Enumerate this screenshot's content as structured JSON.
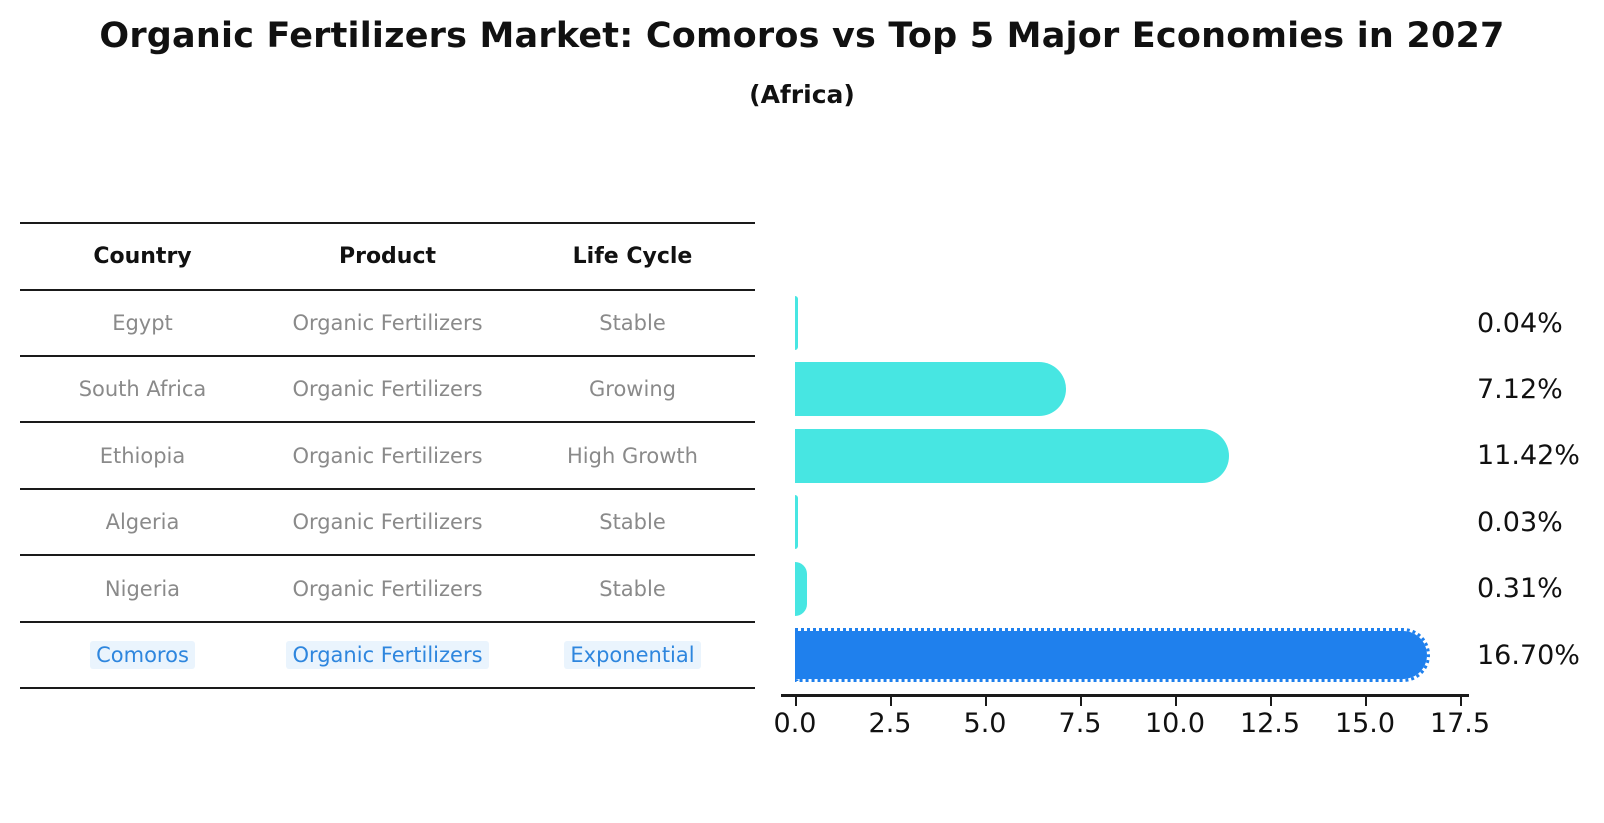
{
  "title": "Organic Fertilizers Market: Comoros vs Top 5 Major Economies in 2027",
  "subtitle": "(Africa)",
  "table": {
    "headers": [
      "Country",
      "Product",
      "Life Cycle"
    ],
    "rows": [
      {
        "country": "Egypt",
        "product": "Organic Fertilizers",
        "life_cycle": "Stable"
      },
      {
        "country": "South Africa",
        "product": "Organic Fertilizers",
        "life_cycle": "Growing"
      },
      {
        "country": "Ethiopia",
        "product": "Organic Fertilizers",
        "life_cycle": "High Growth"
      },
      {
        "country": "Algeria",
        "product": "Organic Fertilizers",
        "life_cycle": "Stable"
      },
      {
        "country": "Nigeria",
        "product": "Organic Fertilizers",
        "life_cycle": "Stable"
      },
      {
        "country": "Comoros",
        "product": "Organic Fertilizers",
        "life_cycle": "Exponential"
      }
    ],
    "highlighted_row": "Comoros"
  },
  "chart_data": {
    "type": "bar",
    "orientation": "horizontal",
    "title": "Organic Fertilizers Market: Comoros vs Top 5 Major Economies in 2027",
    "subtitle": "(Africa)",
    "categories": [
      "Egypt",
      "South Africa",
      "Ethiopia",
      "Algeria",
      "Nigeria",
      "Comoros"
    ],
    "values": [
      0.04,
      7.12,
      11.42,
      0.03,
      0.31,
      16.7
    ],
    "value_labels": [
      "0.04%",
      "7.12%",
      "11.42%",
      "0.03%",
      "0.31%",
      "16.70%"
    ],
    "xlabel": "",
    "ylabel": "",
    "xlim": [
      0,
      17.5
    ],
    "x_tick_labels": [
      "0.0",
      "2.5",
      "5.0",
      "7.5",
      "10.0",
      "12.5",
      "15.0",
      "17.5"
    ],
    "grid": false,
    "legend": false,
    "bar_color": "#47e6e2",
    "highlight_bar_color": "#1f80ed",
    "highlight_text_color": "#2e86de",
    "row_text_color": "#8a8a8a",
    "highlight_index": 5
  }
}
